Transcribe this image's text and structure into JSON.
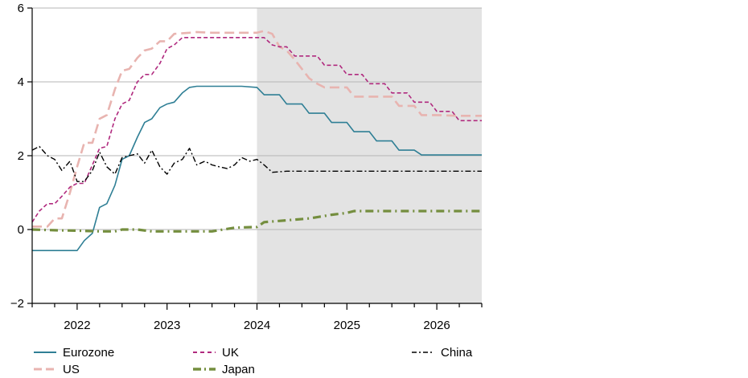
{
  "chart_data": {
    "type": "line",
    "title": "",
    "xlabel": "",
    "ylabel": "",
    "xlim": [
      2021.5,
      2026.5
    ],
    "ylim": [
      -2,
      6
    ],
    "y_ticks": [
      6,
      4,
      2,
      0,
      -2
    ],
    "y_tick_labels": [
      "6",
      "4",
      "2",
      "0",
      "−2"
    ],
    "x_tick_labels": [
      {
        "label": "2022",
        "x": 2022
      },
      {
        "label": "2023",
        "x": 2023
      },
      {
        "label": "2024",
        "x": 2024
      },
      {
        "label": "2025",
        "x": 2025
      },
      {
        "label": "2026",
        "x": 2026
      }
    ],
    "grid": "horizontal",
    "forecast_region": {
      "from": 2024.0,
      "to": 2026.5,
      "color": "#e3e3e3"
    },
    "series": [
      {
        "name": "Eurozone",
        "color": "#2f7f95",
        "dash": "solid",
        "points": [
          [
            2021.5,
            -0.57
          ],
          [
            2021.67,
            -0.57
          ],
          [
            2021.83,
            -0.57
          ],
          [
            2022.0,
            -0.57
          ],
          [
            2022.08,
            -0.3
          ],
          [
            2022.17,
            -0.1
          ],
          [
            2022.25,
            0.6
          ],
          [
            2022.33,
            0.7
          ],
          [
            2022.42,
            1.2
          ],
          [
            2022.5,
            1.9
          ],
          [
            2022.58,
            2.0
          ],
          [
            2022.67,
            2.5
          ],
          [
            2022.75,
            2.9
          ],
          [
            2022.83,
            3.0
          ],
          [
            2022.92,
            3.3
          ],
          [
            2023.0,
            3.4
          ],
          [
            2023.08,
            3.45
          ],
          [
            2023.17,
            3.7
          ],
          [
            2023.25,
            3.85
          ],
          [
            2023.33,
            3.88
          ],
          [
            2023.5,
            3.88
          ],
          [
            2023.67,
            3.88
          ],
          [
            2023.83,
            3.88
          ],
          [
            2024.0,
            3.85
          ],
          [
            2024.08,
            3.65
          ],
          [
            2024.25,
            3.65
          ],
          [
            2024.33,
            3.4
          ],
          [
            2024.5,
            3.4
          ],
          [
            2024.58,
            3.15
          ],
          [
            2024.75,
            3.15
          ],
          [
            2024.83,
            2.9
          ],
          [
            2025.0,
            2.9
          ],
          [
            2025.08,
            2.65
          ],
          [
            2025.25,
            2.65
          ],
          [
            2025.33,
            2.4
          ],
          [
            2025.5,
            2.4
          ],
          [
            2025.58,
            2.15
          ],
          [
            2025.75,
            2.15
          ],
          [
            2025.83,
            2.02
          ],
          [
            2026.0,
            2.02
          ],
          [
            2026.25,
            2.02
          ],
          [
            2026.5,
            2.02
          ]
        ]
      },
      {
        "name": "US",
        "color": "#e8b4b0",
        "dash": "long-dash",
        "points": [
          [
            2021.5,
            0.08
          ],
          [
            2021.67,
            0.08
          ],
          [
            2021.75,
            0.3
          ],
          [
            2021.83,
            0.3
          ],
          [
            2021.92,
            1.0
          ],
          [
            2022.0,
            1.7
          ],
          [
            2022.08,
            2.35
          ],
          [
            2022.17,
            2.35
          ],
          [
            2022.25,
            3.0
          ],
          [
            2022.33,
            3.1
          ],
          [
            2022.42,
            3.8
          ],
          [
            2022.5,
            4.3
          ],
          [
            2022.58,
            4.35
          ],
          [
            2022.67,
            4.65
          ],
          [
            2022.75,
            4.85
          ],
          [
            2022.83,
            4.9
          ],
          [
            2022.92,
            5.1
          ],
          [
            2023.0,
            5.1
          ],
          [
            2023.08,
            5.3
          ],
          [
            2023.25,
            5.33
          ],
          [
            2023.33,
            5.35
          ],
          [
            2023.5,
            5.33
          ],
          [
            2023.67,
            5.33
          ],
          [
            2023.83,
            5.33
          ],
          [
            2024.0,
            5.33
          ],
          [
            2024.08,
            5.38
          ],
          [
            2024.17,
            5.3
          ],
          [
            2024.25,
            4.95
          ],
          [
            2024.33,
            4.85
          ],
          [
            2024.42,
            4.6
          ],
          [
            2024.5,
            4.35
          ],
          [
            2024.58,
            4.1
          ],
          [
            2024.67,
            3.95
          ],
          [
            2024.75,
            3.85
          ],
          [
            2024.83,
            3.85
          ],
          [
            2025.0,
            3.85
          ],
          [
            2025.08,
            3.6
          ],
          [
            2025.25,
            3.6
          ],
          [
            2025.42,
            3.6
          ],
          [
            2025.5,
            3.6
          ],
          [
            2025.58,
            3.35
          ],
          [
            2025.75,
            3.35
          ],
          [
            2025.83,
            3.1
          ],
          [
            2026.0,
            3.1
          ],
          [
            2026.25,
            3.08
          ],
          [
            2026.5,
            3.08
          ]
        ]
      },
      {
        "name": "UK",
        "color": "#b0297e",
        "dash": "short-dash",
        "points": [
          [
            2021.5,
            0.2
          ],
          [
            2021.58,
            0.5
          ],
          [
            2021.67,
            0.7
          ],
          [
            2021.75,
            0.7
          ],
          [
            2021.83,
            0.9
          ],
          [
            2021.92,
            1.15
          ],
          [
            2022.0,
            1.25
          ],
          [
            2022.08,
            1.25
          ],
          [
            2022.17,
            1.75
          ],
          [
            2022.25,
            2.2
          ],
          [
            2022.33,
            2.25
          ],
          [
            2022.42,
            3.0
          ],
          [
            2022.5,
            3.4
          ],
          [
            2022.58,
            3.5
          ],
          [
            2022.67,
            4.0
          ],
          [
            2022.75,
            4.2
          ],
          [
            2022.83,
            4.2
          ],
          [
            2022.92,
            4.5
          ],
          [
            2023.0,
            4.9
          ],
          [
            2023.08,
            5.0
          ],
          [
            2023.17,
            5.2
          ],
          [
            2023.25,
            5.2
          ],
          [
            2023.5,
            5.2
          ],
          [
            2023.75,
            5.2
          ],
          [
            2024.0,
            5.2
          ],
          [
            2024.08,
            5.2
          ],
          [
            2024.17,
            5.0
          ],
          [
            2024.25,
            4.95
          ],
          [
            2024.33,
            4.95
          ],
          [
            2024.42,
            4.7
          ],
          [
            2024.58,
            4.7
          ],
          [
            2024.67,
            4.7
          ],
          [
            2024.75,
            4.45
          ],
          [
            2024.92,
            4.45
          ],
          [
            2025.0,
            4.2
          ],
          [
            2025.17,
            4.2
          ],
          [
            2025.25,
            3.95
          ],
          [
            2025.42,
            3.95
          ],
          [
            2025.5,
            3.7
          ],
          [
            2025.67,
            3.7
          ],
          [
            2025.75,
            3.45
          ],
          [
            2025.92,
            3.45
          ],
          [
            2026.0,
            3.2
          ],
          [
            2026.17,
            3.2
          ],
          [
            2026.25,
            2.95
          ],
          [
            2026.5,
            2.95
          ]
        ]
      },
      {
        "name": "Japan",
        "color": "#748e3e",
        "dash": "dash-dot-thick",
        "points": [
          [
            2021.5,
            0.0
          ],
          [
            2021.75,
            -0.02
          ],
          [
            2022.0,
            -0.03
          ],
          [
            2022.25,
            -0.05
          ],
          [
            2022.42,
            -0.05
          ],
          [
            2022.5,
            0.0
          ],
          [
            2022.67,
            0.0
          ],
          [
            2022.83,
            -0.05
          ],
          [
            2023.0,
            -0.05
          ],
          [
            2023.25,
            -0.05
          ],
          [
            2023.5,
            -0.05
          ],
          [
            2023.75,
            0.05
          ],
          [
            2024.0,
            0.07
          ],
          [
            2024.08,
            0.2
          ],
          [
            2024.33,
            0.25
          ],
          [
            2024.58,
            0.3
          ],
          [
            2024.83,
            0.4
          ],
          [
            2025.0,
            0.45
          ],
          [
            2025.08,
            0.5
          ],
          [
            2025.5,
            0.5
          ],
          [
            2026.0,
            0.5
          ],
          [
            2026.5,
            0.5
          ]
        ]
      },
      {
        "name": "China",
        "color": "#000000",
        "dash": "dash-dot",
        "points": [
          [
            2021.5,
            2.15
          ],
          [
            2021.58,
            2.25
          ],
          [
            2021.67,
            2.0
          ],
          [
            2021.75,
            1.9
          ],
          [
            2021.83,
            1.6
          ],
          [
            2021.92,
            1.85
          ],
          [
            2022.0,
            1.3
          ],
          [
            2022.08,
            1.3
          ],
          [
            2022.17,
            1.6
          ],
          [
            2022.25,
            2.1
          ],
          [
            2022.33,
            1.7
          ],
          [
            2022.42,
            1.5
          ],
          [
            2022.5,
            1.95
          ],
          [
            2022.58,
            2.0
          ],
          [
            2022.67,
            2.05
          ],
          [
            2022.75,
            1.8
          ],
          [
            2022.83,
            2.15
          ],
          [
            2022.92,
            1.7
          ],
          [
            2023.0,
            1.5
          ],
          [
            2023.08,
            1.8
          ],
          [
            2023.17,
            1.9
          ],
          [
            2023.25,
            2.2
          ],
          [
            2023.33,
            1.75
          ],
          [
            2023.42,
            1.85
          ],
          [
            2023.5,
            1.75
          ],
          [
            2023.58,
            1.7
          ],
          [
            2023.67,
            1.65
          ],
          [
            2023.75,
            1.75
          ],
          [
            2023.83,
            1.95
          ],
          [
            2023.92,
            1.85
          ],
          [
            2024.0,
            1.9
          ],
          [
            2024.08,
            1.75
          ],
          [
            2024.17,
            1.55
          ],
          [
            2024.33,
            1.58
          ],
          [
            2024.5,
            1.58
          ],
          [
            2024.75,
            1.58
          ],
          [
            2025.0,
            1.58
          ],
          [
            2025.5,
            1.58
          ],
          [
            2026.0,
            1.58
          ],
          [
            2026.5,
            1.58
          ]
        ]
      }
    ],
    "legend": {
      "placement": "bottom",
      "items": [
        {
          "name": "Eurozone",
          "label": "Eurozone"
        },
        {
          "name": "UK",
          "label": "UK"
        },
        {
          "name": "China",
          "label": "China"
        },
        {
          "name": "US",
          "label": "US"
        },
        {
          "name": "Japan",
          "label": "Japan"
        }
      ]
    }
  }
}
